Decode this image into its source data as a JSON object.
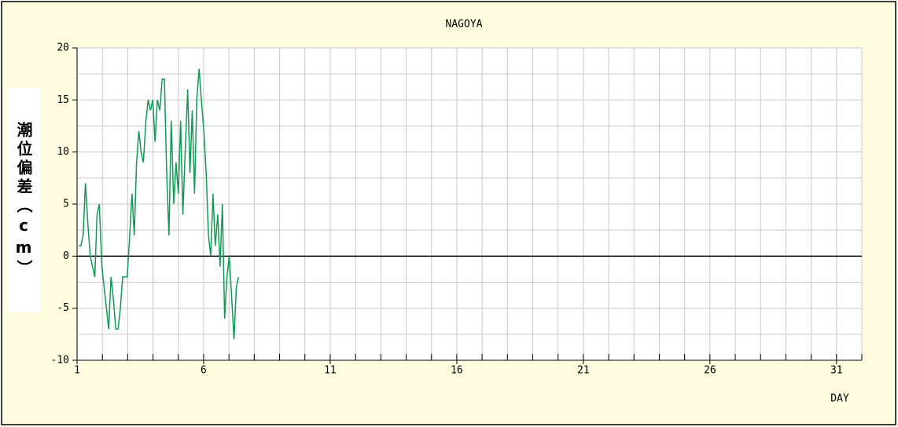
{
  "chart_data": {
    "type": "line",
    "title": "NAGOYA",
    "x_label": "DAY",
    "y_label": "潮位偏差（cm）",
    "xlim": [
      1,
      32
    ],
    "xticks": [
      1,
      6,
      11,
      16,
      21,
      26,
      31
    ],
    "ylim": [
      -10,
      20
    ],
    "yticks": [
      -10,
      -5,
      0,
      5,
      10,
      15,
      20
    ],
    "grid": true,
    "series": [
      {
        "color": "#119955",
        "x": [
          1.06,
          1.15,
          1.24,
          1.33,
          1.43,
          1.52,
          1.61,
          1.7,
          1.79,
          1.88,
          1.98,
          2.07,
          2.16,
          2.25,
          2.34,
          2.43,
          2.53,
          2.62,
          2.71,
          2.8,
          2.89,
          2.98,
          3.08,
          3.17,
          3.26,
          3.35,
          3.44,
          3.53,
          3.62,
          3.72,
          3.81,
          3.9,
          3.99,
          4.08,
          4.17,
          4.27,
          4.36,
          4.45,
          4.54,
          4.63,
          4.72,
          4.82,
          4.91,
          5.0,
          5.09,
          5.18,
          5.27,
          5.37,
          5.46,
          5.55,
          5.64,
          5.73,
          5.82,
          5.91,
          6.01,
          6.1,
          6.19,
          6.28,
          6.37,
          6.46,
          6.56,
          6.65,
          6.74,
          6.83,
          6.92,
          7.01,
          7.11,
          7.2,
          7.29,
          7.38
        ],
        "values": [
          1,
          1,
          2,
          7,
          3,
          0,
          -1,
          -2,
          4,
          5,
          -1,
          -3,
          -5,
          -7,
          -2,
          -4,
          -7,
          -7,
          -5,
          -2,
          -2,
          -2,
          2,
          6,
          2,
          9,
          12,
          10,
          9,
          13,
          15,
          14,
          15,
          11,
          15,
          14,
          17,
          17,
          8,
          2,
          13,
          5,
          9,
          6,
          13,
          4,
          10,
          16,
          8,
          14,
          6,
          15,
          18,
          15,
          12,
          8,
          2,
          0,
          6,
          1,
          4,
          -1,
          5,
          -6,
          -2,
          0,
          -4,
          -8,
          -3,
          -2
        ]
      }
    ]
  }
}
